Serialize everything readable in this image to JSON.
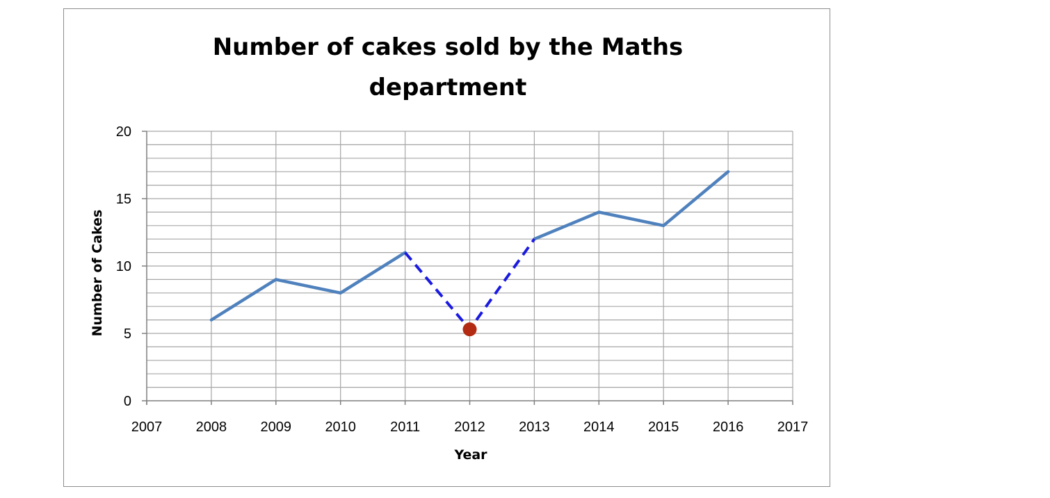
{
  "chart_data": {
    "type": "line",
    "title_lines": [
      "Number of cakes sold by the Maths",
      "department"
    ],
    "xlabel": "Year",
    "ylabel": "Number of Cakes",
    "xlim": [
      2007,
      2017
    ],
    "ylim": [
      0,
      20
    ],
    "x_ticks": [
      2007,
      2008,
      2009,
      2010,
      2011,
      2012,
      2013,
      2014,
      2015,
      2016,
      2017
    ],
    "y_ticks": [
      0,
      5,
      10,
      15,
      20
    ],
    "y_minor_step": 1,
    "grid": true,
    "series": [
      {
        "segments": [
          {
            "x": [
              2008,
              2009,
              2010,
              2011
            ],
            "y": [
              6,
              9,
              8,
              11
            ]
          },
          {
            "x": [
              2013,
              2014,
              2015,
              2016
            ],
            "y": [
              12,
              14,
              13,
              17
            ]
          }
        ],
        "color": "#4f81bd",
        "style": "solid"
      },
      {
        "x": [
          2011,
          2012,
          2013
        ],
        "y": [
          11,
          5.3,
          12
        ],
        "color": "#1a1ae0",
        "style": "dashed"
      }
    ],
    "marker": {
      "x": 2012,
      "y": 5.3,
      "color": "#b22b12"
    }
  }
}
